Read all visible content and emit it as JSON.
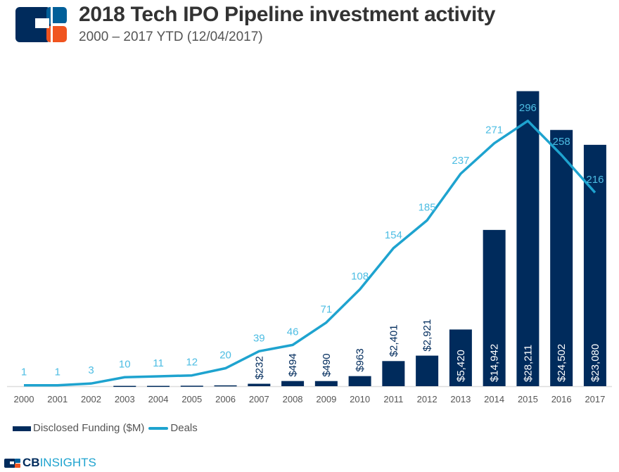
{
  "header": {
    "title": "2018 Tech IPO Pipeline investment activity",
    "subtitle": "2000 – 2017 YTD (12/04/2017)"
  },
  "footer": {
    "brand_cb": "CB",
    "brand_insights": "INSIGHTS"
  },
  "colors": {
    "bar": "#002b5c",
    "line": "#1ea3cf",
    "label_line": "#4dbde3",
    "orange": "#f0541f",
    "mid_blue": "#005f99"
  },
  "chart_data": {
    "type": "bar+line",
    "title": "2018 Tech IPO Pipeline investment activity",
    "subtitle": "2000 – 2017 YTD (12/04/2017)",
    "categories": [
      "2000",
      "2001",
      "2002",
      "2003",
      "2004",
      "2005",
      "2006",
      "2007",
      "2008",
      "2009",
      "2010",
      "2011",
      "2012",
      "2013",
      "2014",
      "2015",
      "2016",
      "2017"
    ],
    "series": [
      {
        "name": "Disclosed Funding ($M)",
        "type": "bar",
        "axis": "left",
        "values": [
          0,
          0,
          0,
          30,
          30,
          45,
          80,
          232,
          494,
          490,
          963,
          2401,
          2921,
          5420,
          14942,
          28211,
          24502,
          23080
        ],
        "labels": [
          "",
          "",
          "",
          "",
          "",
          "",
          "",
          "$232",
          "$494",
          "$490",
          "$963",
          "$2,401",
          "$2,921",
          "$5,420",
          "$14,942",
          "$28,211",
          "$24,502",
          "$23,080"
        ]
      },
      {
        "name": "Deals",
        "type": "line",
        "axis": "right",
        "values": [
          1,
          1,
          3,
          10,
          11,
          12,
          20,
          39,
          46,
          71,
          108,
          154,
          185,
          237,
          271,
          296,
          258,
          216
        ]
      }
    ],
    "ylim_funding": [
      0,
      30000
    ],
    "ylim_deals": [
      0,
      350
    ],
    "grid": false,
    "legend": "bottom-left"
  }
}
